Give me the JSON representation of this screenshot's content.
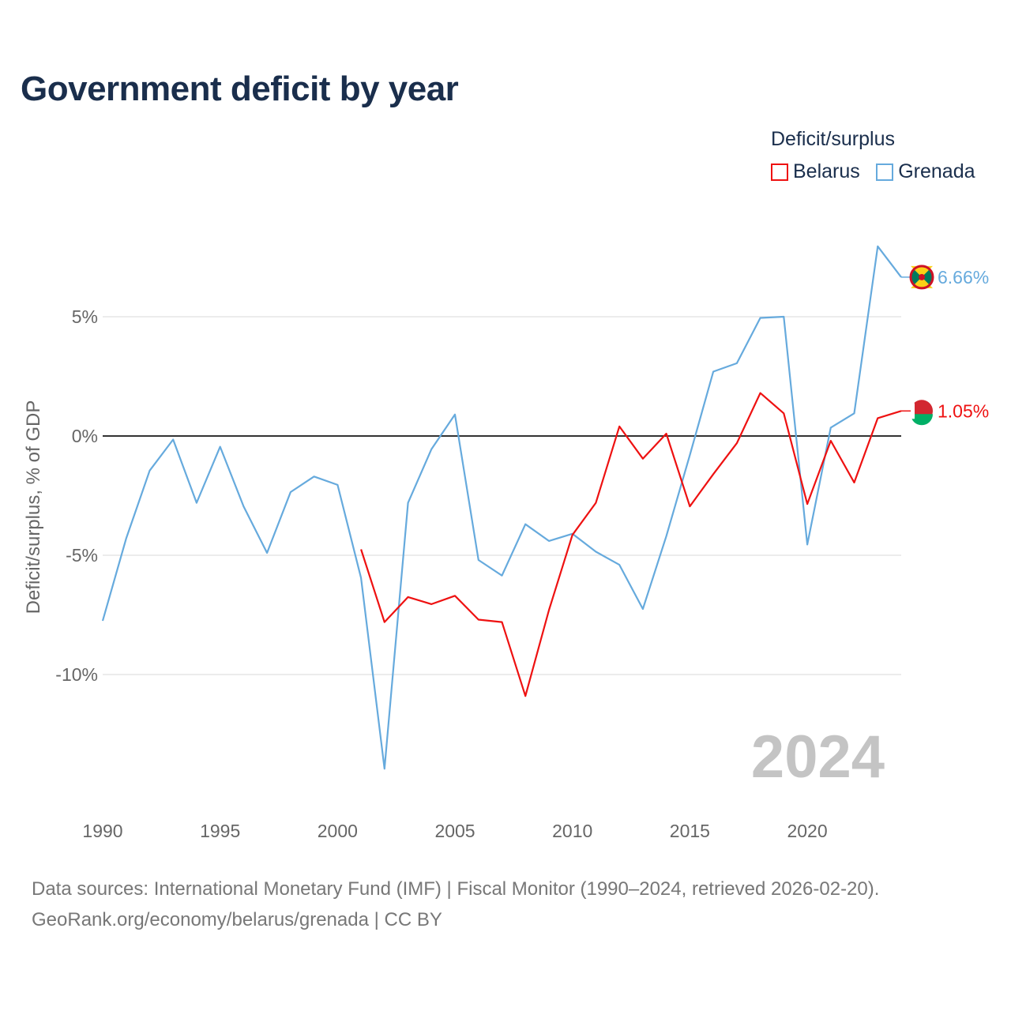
{
  "title": "Government deficit by year",
  "legend": {
    "title": "Deficit/surplus",
    "items": [
      {
        "label": "Belarus",
        "color": "#ee1111"
      },
      {
        "label": "Grenada",
        "color": "#66aadd"
      }
    ]
  },
  "source": {
    "line1": "Data sources: International Monetary Fund (IMF) | Fiscal Monitor (1990–2024, retrieved 2026-02-20).",
    "line2": "GeoRank.org/economy/belarus/grenada | CC BY"
  },
  "chart_data": {
    "type": "line",
    "title": "Government deficit by year",
    "xlabel": "",
    "ylabel": "Deficit/surplus, % of GDP",
    "xlim": [
      1990,
      2024
    ],
    "ylim": [
      -15.5,
      9.0
    ],
    "x_ticks": [
      1990,
      1995,
      2000,
      2005,
      2010,
      2015,
      2020
    ],
    "y_ticks": [
      {
        "value": 5,
        "label": "5%"
      },
      {
        "value": 0,
        "label": "0%"
      },
      {
        "value": -5,
        "label": "-5%"
      },
      {
        "value": -10,
        "label": "-10%"
      }
    ],
    "year_watermark": "2024",
    "series": [
      {
        "name": "Grenada",
        "color": "#66aadd",
        "end_label": "6.66%",
        "x": [
          1990,
          1991,
          1992,
          1993,
          1994,
          1995,
          1996,
          1997,
          1998,
          1999,
          2000,
          2001,
          2002,
          2003,
          2004,
          2005,
          2006,
          2007,
          2008,
          2009,
          2010,
          2011,
          2012,
          2013,
          2014,
          2015,
          2016,
          2017,
          2018,
          2019,
          2020,
          2021,
          2022,
          2023,
          2024
        ],
        "values": [
          -7.75,
          -4.3,
          -1.45,
          -0.15,
          -2.8,
          -0.45,
          -2.95,
          -4.9,
          -2.35,
          -1.7,
          -2.05,
          -5.95,
          -13.95,
          -2.8,
          -0.55,
          0.9,
          -5.2,
          -5.85,
          -3.7,
          -4.4,
          -4.1,
          -4.85,
          -5.4,
          -7.25,
          -4.2,
          -0.8,
          2.7,
          3.05,
          4.95,
          5.0,
          -4.55,
          0.35,
          0.95,
          7.95,
          6.66
        ]
      },
      {
        "name": "Belarus",
        "color": "#ee1111",
        "end_label": "1.05%",
        "x": [
          2001,
          2002,
          2003,
          2004,
          2005,
          2006,
          2007,
          2008,
          2009,
          2010,
          2011,
          2012,
          2013,
          2014,
          2015,
          2016,
          2017,
          2018,
          2019,
          2020,
          2021,
          2022,
          2023,
          2024
        ],
        "values": [
          -4.75,
          -7.8,
          -6.75,
          -7.05,
          -6.7,
          -7.7,
          -7.8,
          -10.9,
          -7.3,
          -4.15,
          -2.8,
          0.4,
          -0.95,
          0.1,
          -2.95,
          -1.6,
          -0.3,
          1.8,
          0.95,
          -2.85,
          -0.2,
          -1.95,
          0.75,
          1.05
        ]
      }
    ]
  }
}
